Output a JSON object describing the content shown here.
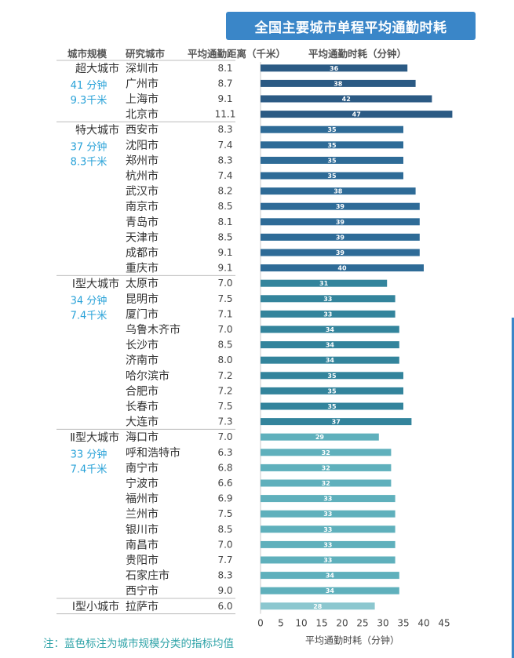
{
  "title": "全国主要城市单程平均通勤时耗",
  "headers": {
    "scale": "城市规模",
    "city": "研究城市",
    "distance": "平均通勤距离（千米）",
    "time": "平均通勤时耗（分钟）"
  },
  "note": "注：蓝色标注为城市规模分类的指标均值",
  "colors": {
    "super": "#2b5a84",
    "mega": "#2e6b97",
    "type1": "#33849c",
    "type2": "#5fb0bc",
    "small": "#8cc7cf",
    "accent": "#29a2d8"
  },
  "groups": [
    {
      "scale": "超大城市",
      "avg_time": "41 分钟",
      "avg_dist": "9.3千米",
      "color_key": "super"
    },
    {
      "scale": "特大城市",
      "avg_time": "37 分钟",
      "avg_dist": "8.3千米",
      "color_key": "mega"
    },
    {
      "scale": "Ⅰ型大城市",
      "avg_time": "34 分钟",
      "avg_dist": "7.4千米",
      "color_key": "type1"
    },
    {
      "scale": "Ⅱ型大城市",
      "avg_time": "33 分钟",
      "avg_dist": "7.4千米",
      "color_key": "type2"
    },
    {
      "scale": "Ⅰ型小城市",
      "avg_time": "",
      "avg_dist": "",
      "color_key": "small"
    }
  ],
  "chart_data": {
    "type": "bar",
    "orientation": "horizontal",
    "xlabel": "平均通勤时耗（分钟）",
    "xlim": [
      0,
      48
    ],
    "xticks": [
      0,
      5,
      10,
      15,
      20,
      25,
      30,
      35,
      40,
      45
    ],
    "categories": [
      "深圳市",
      "广州市",
      "上海市",
      "北京市",
      "西安市",
      "沈阳市",
      "郑州市",
      "杭州市",
      "武汉市",
      "南京市",
      "青岛市",
      "天津市",
      "成都市",
      "重庆市",
      "太原市",
      "昆明市",
      "厦门市",
      "乌鲁木齐市",
      "长沙市",
      "济南市",
      "哈尔滨市",
      "合肥市",
      "长春市",
      "大连市",
      "海口市",
      "呼和浩特市",
      "南宁市",
      "宁波市",
      "福州市",
      "兰州市",
      "银川市",
      "南昌市",
      "贵阳市",
      "石家庄市",
      "西宁市",
      "拉萨市"
    ],
    "distance": [
      "8.1",
      "8.7",
      "9.1",
      "11.1",
      "8.3",
      "7.4",
      "8.3",
      "7.4",
      "8.2",
      "8.5",
      "8.1",
      "8.5",
      "9.1",
      "9.1",
      "7.0",
      "7.5",
      "7.1",
      "7.0",
      "8.5",
      "8.0",
      "7.2",
      "7.2",
      "7.5",
      "7.3",
      "7.0",
      "6.3",
      "6.8",
      "6.6",
      "6.9",
      "7.5",
      "8.5",
      "7.0",
      "7.7",
      "8.3",
      "9.0",
      "6.0"
    ],
    "values": [
      36,
      38,
      42,
      47,
      35,
      35,
      35,
      35,
      38,
      39,
      39,
      39,
      39,
      40,
      31,
      33,
      33,
      34,
      34,
      34,
      35,
      35,
      35,
      37,
      29,
      32,
      32,
      32,
      33,
      33,
      33,
      33,
      33,
      34,
      34,
      28
    ],
    "group_sizes": [
      4,
      10,
      10,
      11,
      1
    ]
  }
}
